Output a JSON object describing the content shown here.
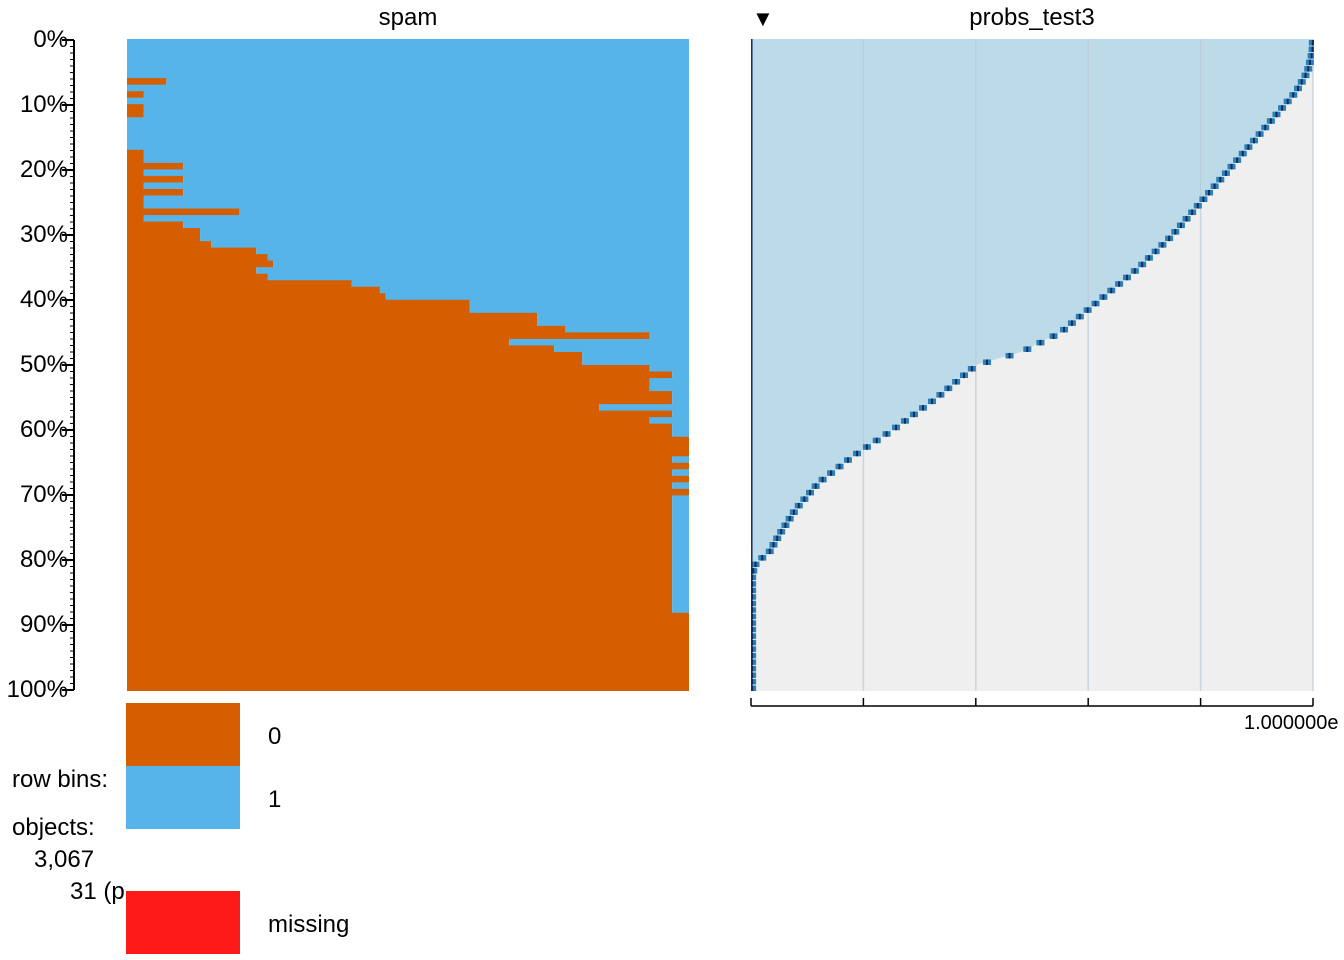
{
  "chart_data": {
    "type": "tableplot",
    "columns": [
      {
        "name": "spam",
        "type": "categorical",
        "categories": [
          "0",
          "1"
        ],
        "bins_fraction_0_top_down": [
          0,
          0,
          0,
          0,
          0,
          0,
          0.07,
          0,
          0.03,
          0,
          0.03,
          0.03,
          0,
          0,
          0,
          0,
          0,
          0.03,
          0.03,
          0.1,
          0.03,
          0.1,
          0.03,
          0.1,
          0.03,
          0.03,
          0.2,
          0.03,
          0.1,
          0.13,
          0.13,
          0.15,
          0.23,
          0.25,
          0.26,
          0.23,
          0.25,
          0.4,
          0.45,
          0.46,
          0.61,
          0.61,
          0.73,
          0.73,
          0.78,
          0.93,
          0.68,
          0.76,
          0.81,
          0.81,
          0.93,
          0.97,
          0.93,
          0.93,
          0.97,
          0.97,
          0.84,
          0.97,
          0.93,
          0.97,
          0.97,
          1,
          1,
          1,
          0.97,
          1,
          0.97,
          1,
          0.97,
          1,
          0.97,
          0.97,
          0.97,
          0.97,
          0.97,
          0.97,
          0.97,
          0.97,
          0.97,
          0.97,
          0.97,
          0.97,
          0.97,
          0.97,
          0.97,
          0.97,
          0.97,
          0.97,
          1,
          1,
          1,
          1,
          1,
          1,
          1,
          1,
          1,
          1,
          1,
          1
        ],
        "colors": {
          "0": "#D55E00",
          "1": "#56B4E9",
          "missing": "#FF1A1A"
        }
      },
      {
        "name": "probs_test3",
        "type": "numeric",
        "sort": "descending",
        "quantile_positions": [
          0,
          0.02,
          0.05,
          0.08,
          0.11,
          0.15,
          0.2,
          0.25,
          0.3,
          0.35,
          0.4,
          0.45,
          0.48,
          0.5,
          0.55,
          0.6,
          0.64,
          0.68,
          0.72,
          0.76,
          0.79,
          0.8,
          0.82
        ],
        "quantile_means": [
          1,
          0.999,
          0.99,
          0.97,
          0.94,
          0.9,
          0.85,
          0.8,
          0.75,
          0.69,
          0.62,
          0.55,
          0.48,
          0.4,
          0.33,
          0.25,
          0.18,
          0.12,
          0.08,
          0.05,
          0.03,
          0.01,
          0.002
        ],
        "bar_domain_fraction": [
          0,
          1
        ],
        "x_tick_label": "1.000000e",
        "x_tick_count": 6,
        "colors": {
          "area": "#BDDAE9",
          "rest": "#EFEFEF",
          "line": "#0B2D5C",
          "marker": "#2C7FB8"
        }
      }
    ],
    "y_axis": {
      "tick_labels": [
        "0%",
        "10%",
        "20%",
        "30%",
        "40%",
        "50%",
        "60%",
        "70%",
        "80%",
        "90%",
        "100%"
      ]
    },
    "sort_indicator": "▼"
  },
  "side": {
    "row_bins_label": "row bins:",
    "objects_label": "objects:",
    "objects_value": "3,067",
    "bins_value": "31 (p"
  },
  "legend": {
    "items": [
      {
        "label": "0",
        "color": "#D55E00"
      },
      {
        "label": "1",
        "color": "#56B4E9"
      }
    ],
    "missing_label": "missing",
    "missing_color": "#FF1A1A"
  }
}
